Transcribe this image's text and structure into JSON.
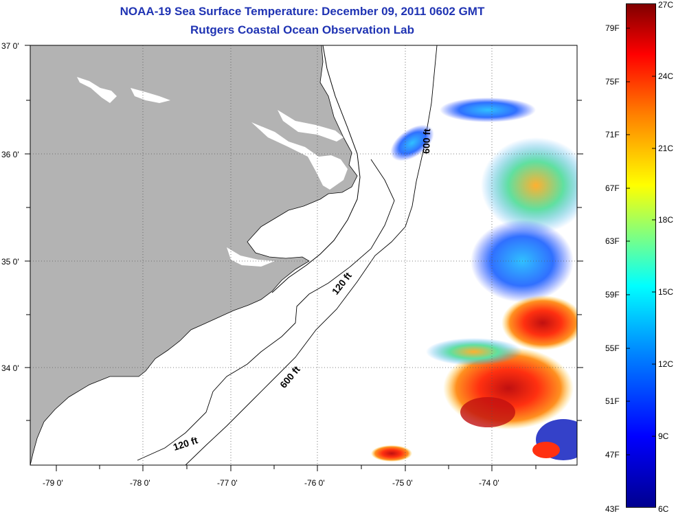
{
  "header": {
    "title_line1": "NOAA-19 Sea Surface Temperature:  December 09, 2011 0602 GMT",
    "title_line2": "Rutgers Coastal Ocean Observation Lab"
  },
  "map": {
    "lon_ticks": [
      "-79 0'",
      "-78 0'",
      "-77 0'",
      "-76 0'",
      "-75 0'",
      "-74 0'"
    ],
    "lat_ticks": [
      "37 0'",
      "36 0'",
      "35 0'",
      "34 0'"
    ],
    "contour_labels": [
      "120 ft",
      "600 ft",
      "120 ft",
      "600 ft"
    ],
    "colors": {
      "land": "#b3b3b3",
      "ocean_nodata": "#ffffff",
      "contour": "#000000",
      "grid": "#555555"
    }
  },
  "colorbar": {
    "fahrenheit_labels": [
      "79F",
      "75F",
      "71F",
      "67F",
      "63F",
      "59F",
      "55F",
      "51F",
      "47F",
      "43F"
    ],
    "celsius_labels": [
      "27C",
      "24C",
      "21C",
      "18C",
      "15C",
      "12C",
      "9C",
      "6C"
    ],
    "colormap": "jet"
  }
}
